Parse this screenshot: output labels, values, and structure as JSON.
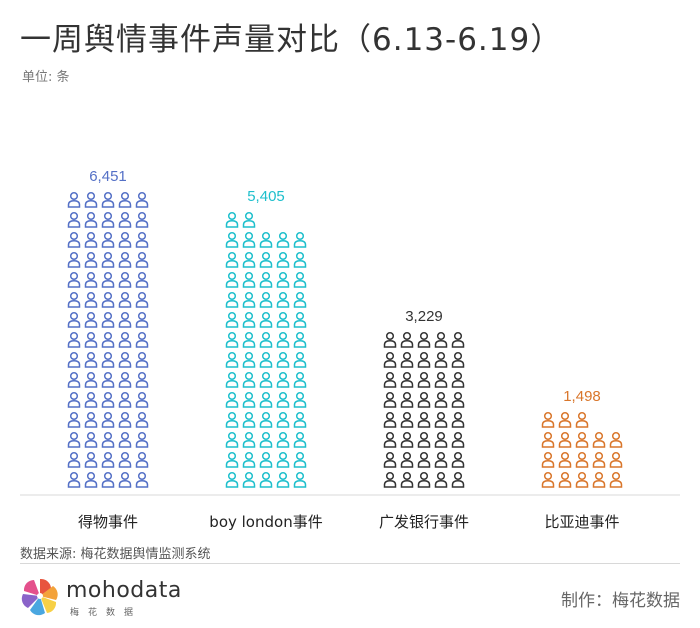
{
  "title": "一周舆情事件声量对比（6.13-6.19）",
  "unit_label": "单位: 条",
  "source_label": "数据来源: 梅花数据舆情监测系统",
  "logo": {
    "brand": "mohodata",
    "brand_cn": "梅花数据"
  },
  "maker_label": "制作：梅花数据",
  "chart_data": {
    "type": "bar",
    "style": "pictograph (person icons stacked in columns of 5)",
    "categories": [
      "得物事件",
      "boy london事件",
      "广发银行事件",
      "比亚迪事件"
    ],
    "values": [
      6451,
      5405,
      3229,
      1498
    ],
    "value_labels": [
      "6,451",
      "5,405",
      "3,229",
      "1,498"
    ],
    "icon_counts": [
      75,
      67,
      40,
      18
    ],
    "colors": [
      "#5470c6",
      "#1ebfcc",
      "#333333",
      "#d9762b"
    ],
    "title": "一周舆情事件声量对比（6.13-6.19）",
    "ylabel": "单位: 条",
    "grid": false
  }
}
